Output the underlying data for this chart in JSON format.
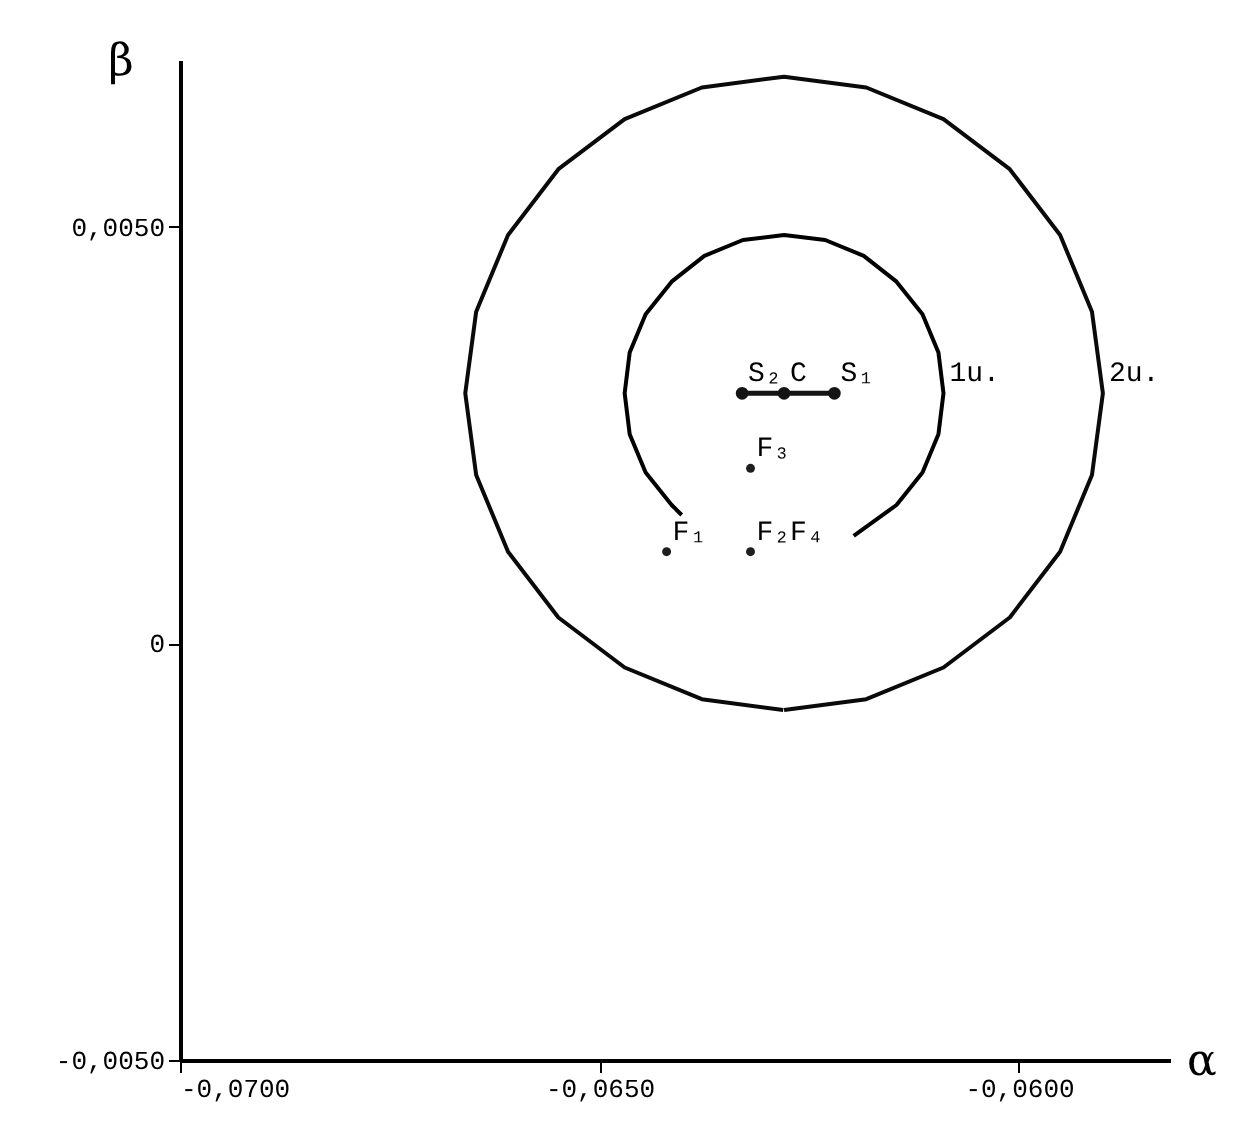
{
  "chart_data": {
    "type": "scatter",
    "xlabel": "α",
    "ylabel": "β",
    "xlim": [
      -0.07,
      -0.0582
    ],
    "ylim": [
      -0.005,
      0.007
    ],
    "xticks": [
      {
        "value": -0.07,
        "label": "-0,0700"
      },
      {
        "value": -0.065,
        "label": "-0,0650"
      },
      {
        "value": -0.06,
        "label": "-0,0600"
      }
    ],
    "yticks": [
      {
        "value": -0.005,
        "label": "-0,0050"
      },
      {
        "value": 0,
        "label": "0"
      },
      {
        "value": 0.005,
        "label": "0,0050"
      }
    ],
    "grid": false,
    "series": [
      {
        "type": "line",
        "marker": "none",
        "color": "#000000",
        "x": [
          -0.06197,
          -0.06146,
          -0.06115,
          -0.06096,
          -0.0609,
          -0.06096,
          -0.06115,
          -0.06146,
          -0.06185,
          -0.06231,
          -0.0628,
          -0.06329,
          -0.06375,
          -0.06414,
          -0.06445,
          -0.06464,
          -0.0647,
          -0.06464,
          -0.06445,
          -0.06414,
          -0.06402
        ],
        "values": [
          0.00129,
          0.00166,
          0.00205,
          0.00251,
          0.003,
          0.00349,
          0.00395,
          0.00434,
          0.00465,
          0.00484,
          0.0049,
          0.00484,
          0.00465,
          0.00434,
          0.00395,
          0.00349,
          0.003,
          0.00251,
          0.00205,
          0.00166,
          0.00154
        ]
      },
      {
        "type": "line",
        "marker": "none",
        "color": "#0a0a0a",
        "x": [
          -0.0628,
          -0.06182,
          -0.0609,
          -0.06011,
          -0.05951,
          -0.05913,
          -0.059,
          -0.05913,
          -0.05951,
          -0.06011,
          -0.0609,
          -0.06182,
          -0.0628,
          -0.06378,
          -0.0647,
          -0.06549,
          -0.06609,
          -0.06647,
          -0.0666,
          -0.06647,
          -0.06609,
          -0.06549,
          -0.0647,
          -0.06378,
          -0.06281
        ],
        "values": [
          -0.0008,
          -0.00067,
          -0.00029,
          0.00031,
          0.0011,
          0.00202,
          0.003,
          0.00398,
          0.0049,
          0.00569,
          0.00629,
          0.00667,
          0.0068,
          0.00667,
          0.00629,
          0.00569,
          0.0049,
          0.00398,
          0.003,
          0.00202,
          0.0011,
          0.00031,
          -0.00029,
          -0.00067,
          -0.0008
        ]
      },
      {
        "type": "line",
        "marker": "circle",
        "color": "#141414",
        "x": [
          -0.0633,
          -0.0628,
          -0.0622
        ],
        "values": [
          0.003,
          0.003,
          0.003
        ]
      },
      {
        "type": "scatter",
        "marker": "circle",
        "color": "#1e1e1e",
        "x": [
          -0.0642,
          -0.0632,
          -0.0632
        ],
        "values": [
          0.0011,
          0.0011,
          0.0021
        ]
      }
    ],
    "annotations": [
      {
        "text": "S₂",
        "x": -0.0633,
        "y": 0.003
      },
      {
        "text": "C",
        "x": -0.0628,
        "y": 0.003
      },
      {
        "text": "S₁",
        "x": -0.0622,
        "y": 0.003
      },
      {
        "text": "F₃",
        "x": -0.0632,
        "y": 0.0021
      },
      {
        "text": "F₁",
        "x": -0.0642,
        "y": 0.0011
      },
      {
        "text": "F₂F₄",
        "x": -0.0632,
        "y": 0.0011
      },
      {
        "text": "1u.",
        "x": -0.0609,
        "y": 0.003
      },
      {
        "text": "2u.",
        "x": -0.059,
        "y": 0.003
      }
    ]
  }
}
